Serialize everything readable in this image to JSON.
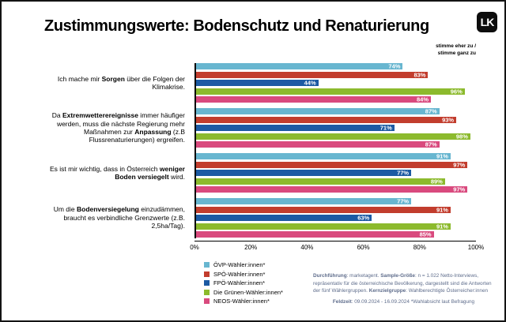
{
  "title": "Zustimmungswerte: Bodenschutz und Renaturierung",
  "logo": {
    "label": "LK"
  },
  "legend_note": {
    "line1": "stimme eher zu /",
    "line2": "stimme ganz zu"
  },
  "chart_data": {
    "type": "bar",
    "orientation": "horizontal",
    "xlim": [
      0,
      100
    ],
    "x_ticks": [
      "0%",
      "20%",
      "40%",
      "60%",
      "80%",
      "100%"
    ],
    "value_suffix": "%",
    "grid": false,
    "legend_position": "bottom-left",
    "categories": [
      {
        "parts": [
          {
            "t": "Ich mache mir ",
            "b": false
          },
          {
            "t": "Sorgen",
            "b": true
          },
          {
            "t": " über die Folgen der Klimakrise.",
            "b": false
          }
        ]
      },
      {
        "parts": [
          {
            "t": "Da ",
            "b": false
          },
          {
            "t": "Extremwetterereignisse",
            "b": true
          },
          {
            "t": " immer häufiger werden, muss die nächste Regierung mehr Maßnahmen zur ",
            "b": false
          },
          {
            "t": "Anpassung",
            "b": true
          },
          {
            "t": " (z.B Flussrenaturierungen) ergreifen.",
            "b": false
          }
        ]
      },
      {
        "parts": [
          {
            "t": "Es ist mir wichtig, dass in Österreich ",
            "b": false
          },
          {
            "t": "weniger Boden versiegelt",
            "b": true
          },
          {
            "t": " wird.",
            "b": false
          }
        ]
      },
      {
        "parts": [
          {
            "t": "Um die ",
            "b": false
          },
          {
            "t": "Bodenversiegelung",
            "b": true
          },
          {
            "t": " einzudämmen, braucht es verbindliche Grenzwerte (z.B. 2,5ha/Tag).",
            "b": false
          }
        ]
      }
    ],
    "series": [
      {
        "name": "ÖVP-Wähler:innen*",
        "color": "#68b6d0",
        "values": [
          74,
          87,
          91,
          77
        ]
      },
      {
        "name": "SPÖ-Wähler:innen*",
        "color": "#c23d2d",
        "values": [
          83,
          93,
          97,
          91
        ]
      },
      {
        "name": "FPÖ-Wähler:innen*",
        "color": "#1c5aa3",
        "values": [
          44,
          71,
          77,
          63
        ]
      },
      {
        "name": "Die Grünen-Wähler:innen*",
        "color": "#8cba2d",
        "values": [
          96,
          98,
          89,
          91
        ]
      },
      {
        "name": "NEOS-Wähler:innen*",
        "color": "#d94a7e",
        "values": [
          84,
          87,
          97,
          85
        ]
      }
    ]
  },
  "footnote": {
    "p1": [
      {
        "t": "Durchführung",
        "b": true
      },
      {
        "t": ": marketagent. ",
        "b": false
      },
      {
        "t": "Sample-Größe",
        "b": true
      },
      {
        "t": ": n = 1.022 Netto-Interviews, repräsentativ für die österreichische Bevölkerung, dargestellt sind die Antworten der fünf Wählergruppen. ",
        "b": false
      },
      {
        "t": "Kernzielgruppe",
        "b": true
      },
      {
        "t": ": Wahlberechtigte Österreicher:innen",
        "b": false
      }
    ],
    "p2": [
      {
        "t": "Feldzeit",
        "b": true
      },
      {
        "t": ": 09.09.2024 - 16.09.2024 ",
        "b": false
      },
      {
        "t": "*Wahlabsicht laut Befragung",
        "b": false
      }
    ]
  }
}
